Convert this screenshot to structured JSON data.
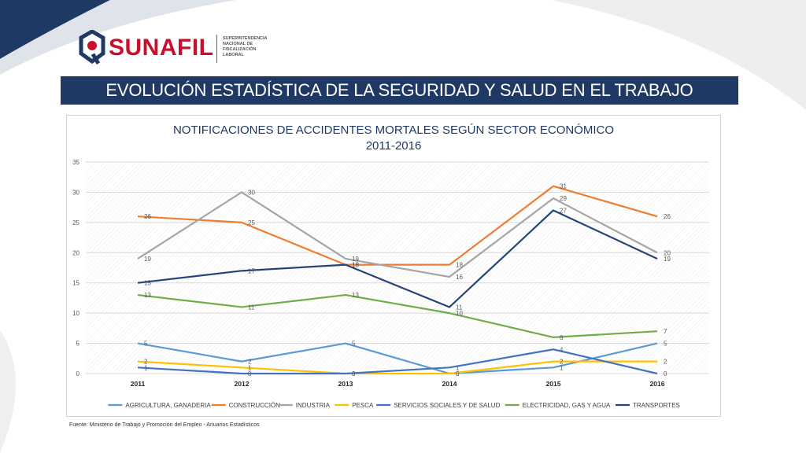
{
  "header": {
    "brand": "SUNAFIL",
    "brand_sub": "Superintendencia Nacional de Fiscalización Laboral",
    "title": "EVOLUCIÓN ESTADÍSTICA DE LA SEGURIDAD Y SALUD EN EL TRABAJO"
  },
  "colors": {
    "title_bar": "#1f3864",
    "brand_red": "#c8102e"
  },
  "footer": {
    "source": "Fuente: Ministerio de Trabajo y Promoción del Empleo - Anuarios Estadísticos"
  },
  "chart_data": {
    "type": "line",
    "title": "NOTIFICACIONES DE ACCIDENTES MORTALES  SEGÚN SECTOR ECONÓMICO",
    "subtitle": "2011-2016",
    "categories": [
      "2011",
      "2012",
      "2013",
      "2014",
      "2015",
      "2016"
    ],
    "ylim": [
      0,
      35
    ],
    "yticks": [
      0,
      5,
      10,
      15,
      20,
      25,
      30,
      35
    ],
    "grid": true,
    "legend_position": "bottom",
    "series": [
      {
        "name": "AGRICULTURA, GANADERIA",
        "color": "#5b9bd5",
        "values": [
          5,
          2,
          5,
          0,
          1,
          5
        ]
      },
      {
        "name": "CONSTRUCCIÓN",
        "color": "#ed7d31",
        "values": [
          26,
          25,
          18,
          18,
          31,
          26
        ]
      },
      {
        "name": "INDUSTRIA",
        "color": "#a5a5a5",
        "values": [
          19,
          30,
          19,
          16,
          29,
          20
        ]
      },
      {
        "name": "PESCA",
        "color": "#ffc000",
        "values": [
          2,
          1,
          0,
          0,
          2,
          2
        ]
      },
      {
        "name": "SERVICIOS SOCIALES Y DE SALUD",
        "color": "#4472c4",
        "values": [
          1,
          0,
          0,
          1,
          4,
          0
        ]
      },
      {
        "name": "ELECTRICIDAD, GAS Y AGUA",
        "color": "#70ad47",
        "values": [
          13,
          11,
          13,
          10,
          6,
          7
        ]
      },
      {
        "name": "TRANSPORTES",
        "color": "#264478",
        "values": [
          15,
          17,
          18,
          11,
          27,
          19
        ]
      }
    ]
  }
}
